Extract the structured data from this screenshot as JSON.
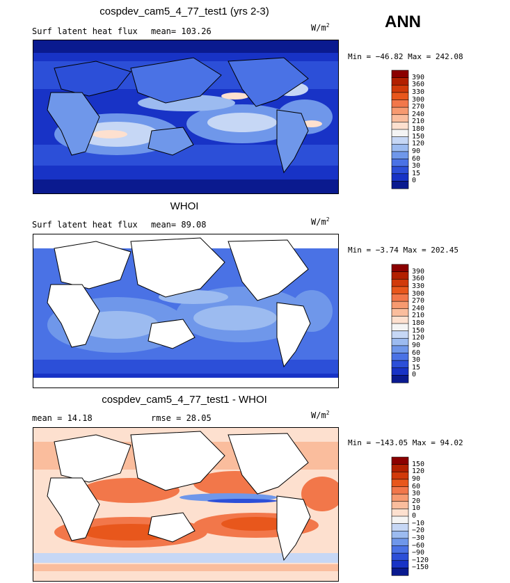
{
  "season": "ANN",
  "panels": [
    {
      "title": "cospdev_cam5_4_77_test1 (yrs 2-3)",
      "subtitle_left": "Surf latent heat flux",
      "subtitle_right": "mean= 103.26",
      "units": "W/m",
      "units_exp": "2",
      "minmax": "Min = −46.82 Max = 242.08"
    },
    {
      "title": "WHOI",
      "subtitle_left": "Surf latent heat flux",
      "subtitle_right": "mean=  89.08",
      "units": "W/m",
      "units_exp": "2",
      "minmax": "Min =  −3.74 Max = 202.45"
    },
    {
      "title": "cospdev_cam5_4_77_test1 - WHOI",
      "subtitle_left": "mean =  14.18",
      "subtitle_right": "rmse =  28.05",
      "units": "W/m",
      "units_exp": "2",
      "minmax": "Min = −143.05 Max =  94.02"
    }
  ],
  "chart_data": [
    {
      "type": "heatmap",
      "title": "cospdev_cam5_4_77_test1 (yrs 2-3)",
      "variable": "Surf latent heat flux",
      "mean": 103.26,
      "min": -46.82,
      "max": 242.08,
      "units": "W/m2",
      "colorbar_levels": [
        "390",
        "360",
        "330",
        "300",
        "270",
        "240",
        "210",
        "180",
        "150",
        "120",
        "90",
        "60",
        "30",
        "15",
        "0"
      ],
      "colorbar_colors": [
        "#8b0000",
        "#b22000",
        "#d13a0a",
        "#e8571c",
        "#f2774a",
        "#f79a70",
        "#fabd9d",
        "#fde0cf",
        "#f4f4f4",
        "#c6d7f5",
        "#9cbbf0",
        "#6f97ea",
        "#4a72e5",
        "#2c4fd8",
        "#1833c6",
        "#0a1a8f"
      ]
    },
    {
      "type": "heatmap",
      "title": "WHOI",
      "variable": "Surf latent heat flux",
      "mean": 89.08,
      "min": -3.74,
      "max": 202.45,
      "units": "W/m2",
      "colorbar_levels": [
        "390",
        "360",
        "330",
        "300",
        "270",
        "240",
        "210",
        "180",
        "150",
        "120",
        "90",
        "60",
        "30",
        "15",
        "0"
      ],
      "colorbar_colors": [
        "#8b0000",
        "#b22000",
        "#d13a0a",
        "#e8571c",
        "#f2774a",
        "#f79a70",
        "#fabd9d",
        "#fde0cf",
        "#f4f4f4",
        "#c6d7f5",
        "#9cbbf0",
        "#6f97ea",
        "#4a72e5",
        "#2c4fd8",
        "#1833c6",
        "#0a1a8f"
      ]
    },
    {
      "type": "heatmap",
      "title": "cospdev_cam5_4_77_test1 - WHOI",
      "mean": 14.18,
      "rmse": 28.05,
      "min": -143.05,
      "max": 94.02,
      "units": "W/m2",
      "colorbar_levels": [
        "150",
        "120",
        "90",
        "60",
        "30",
        "20",
        "10",
        "0",
        "−10",
        "−20",
        "−30",
        "−60",
        "−90",
        "−120",
        "−150"
      ],
      "colorbar_colors": [
        "#8b0000",
        "#b22000",
        "#d13a0a",
        "#e8571c",
        "#f2774a",
        "#f79a70",
        "#fabd9d",
        "#fde0cf",
        "#f4f4f4",
        "#c6d7f5",
        "#9cbbf0",
        "#6f97ea",
        "#4a72e5",
        "#2c4fd8",
        "#1833c6",
        "#0a1a8f"
      ]
    }
  ]
}
